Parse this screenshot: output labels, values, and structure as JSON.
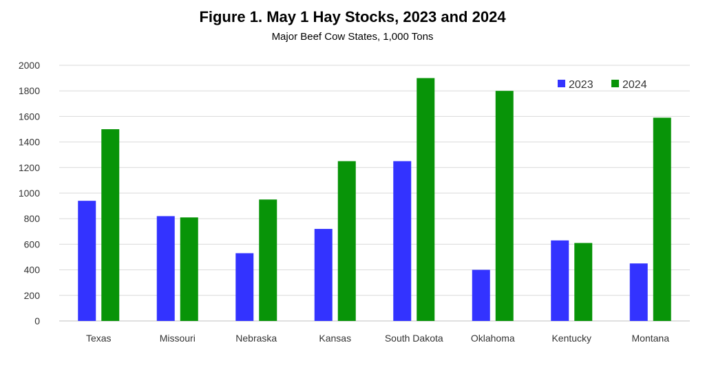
{
  "chart_data": {
    "type": "bar",
    "title": "Figure 1.  May 1 Hay Stocks, 2023 and 2024",
    "subtitle": "Major Beef Cow States, 1,000 Tons",
    "xlabel": "",
    "ylabel": "",
    "ylim": [
      0,
      2000
    ],
    "yticks": [
      0,
      200,
      400,
      600,
      800,
      1000,
      1200,
      1400,
      1600,
      1800,
      2000
    ],
    "grid": true,
    "legend_position": "top-right",
    "categories": [
      "Texas",
      "Missouri",
      "Nebraska",
      "Kansas",
      "South Dakota",
      "Oklahoma",
      "Kentucky",
      "Montana"
    ],
    "series": [
      {
        "name": "2023",
        "color": "#3333ff",
        "values": [
          940,
          820,
          530,
          720,
          1250,
          400,
          630,
          450
        ]
      },
      {
        "name": "2024",
        "color": "#089408",
        "values": [
          1500,
          810,
          950,
          1250,
          1900,
          1800,
          610,
          1590
        ]
      }
    ]
  }
}
